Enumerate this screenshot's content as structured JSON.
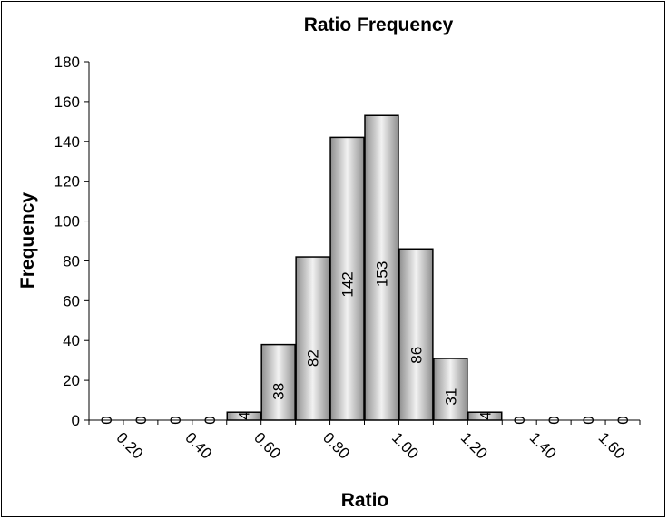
{
  "chart_data": {
    "type": "bar",
    "title": "Ratio Frequency",
    "xlabel": "Ratio",
    "ylabel": "Frequency",
    "ylim": [
      0,
      180
    ],
    "yticks": [
      "0",
      "20",
      "40",
      "60",
      "80",
      "100",
      "120",
      "140",
      "160",
      "180"
    ],
    "xtick_labels": [
      "0.20",
      "0.40",
      "0.60",
      "0.80",
      "1.00",
      "1.20",
      "1.40",
      "1.60"
    ],
    "categories": [
      "0.15",
      "0.25",
      "0.35",
      "0.45",
      "0.55",
      "0.65",
      "0.75",
      "0.85",
      "0.95",
      "1.05",
      "1.15",
      "1.25",
      "1.35",
      "1.45",
      "1.55",
      "1.65"
    ],
    "values": [
      0,
      0,
      0,
      0,
      4,
      38,
      82,
      142,
      153,
      86,
      31,
      4,
      0,
      0,
      0,
      0
    ],
    "data_labels": [
      "0",
      "0",
      "0",
      "0",
      "4",
      "38",
      "82",
      "142",
      "153",
      "86",
      "31",
      "4",
      "0",
      "0",
      "0",
      "0"
    ],
    "grid": false,
    "legend": "none",
    "bar_gradient": [
      "#8f8f8f",
      "#f2f2f2",
      "#8f8f8f"
    ],
    "border_color": "#000000"
  }
}
